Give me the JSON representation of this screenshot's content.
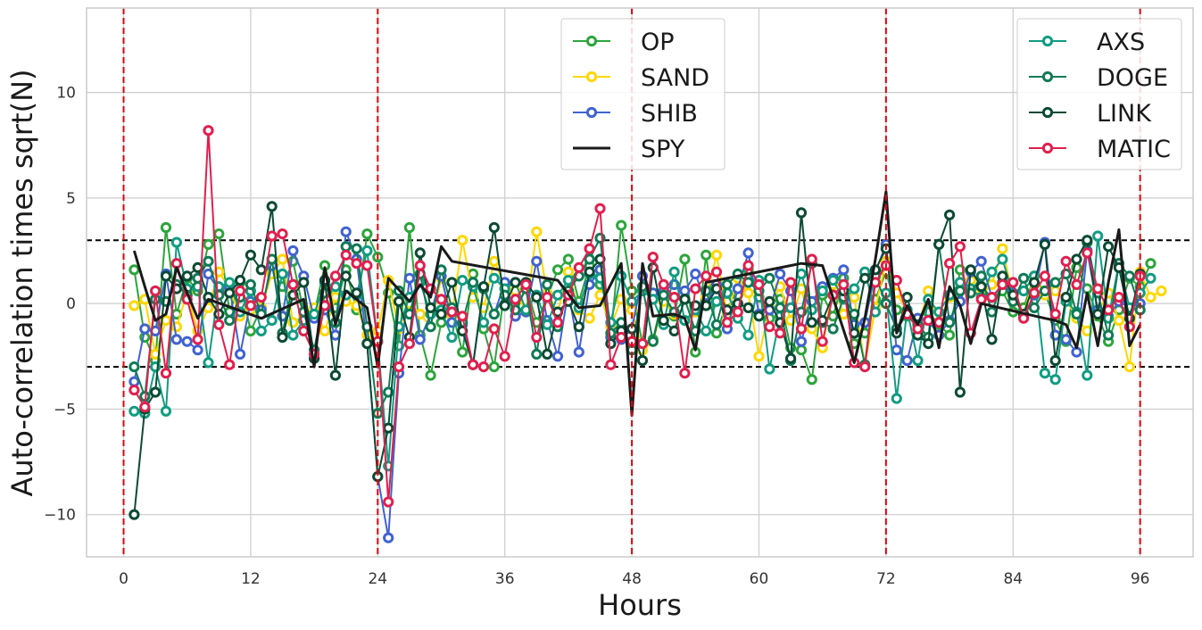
{
  "chart_data": {
    "type": "line",
    "xlabel": "Hours",
    "ylabel": "Auto-correlation times sqrt(N)",
    "xlim": [
      -3.5,
      101.0
    ],
    "ylim": [
      -12,
      14
    ],
    "xticks": [
      0,
      12,
      24,
      36,
      48,
      60,
      72,
      84,
      96
    ],
    "yticks": [
      -10,
      -5,
      0,
      5,
      10
    ],
    "ytick_labels": [
      "−10",
      "−5",
      "0",
      "5",
      "10"
    ],
    "grid": true,
    "threshold_lines": {
      "values": [
        3,
        -3
      ],
      "color": "#000000",
      "style": "dashed"
    },
    "day_lines": {
      "values": [
        0,
        24,
        48,
        72,
        96
      ],
      "color": "#e8000b",
      "style": "dashed"
    },
    "legend_left": {
      "position": "top-center",
      "entries": [
        "OP",
        "SAND",
        "SHIB",
        "SPY"
      ]
    },
    "legend_right": {
      "position": "top-right",
      "entries": [
        "AXS",
        "DOGE",
        "LINK",
        "MATIC"
      ]
    },
    "series": [
      {
        "name": "OP",
        "color": "#2ca53c",
        "marker": true,
        "values": [
          1.6,
          -1.6,
          -2.7,
          3.6,
          -0.5,
          1.2,
          0.6,
          2.8,
          3.3,
          -0.4,
          1.0,
          -1.3,
          -0.2,
          1.6,
          0.8,
          2.0,
          -0.4,
          -0.5,
          1.8,
          -0.2,
          1.6,
          -0.3,
          3.3,
          2.2,
          0.5,
          -2.0,
          3.6,
          -1.5,
          -3.4,
          -0.9,
          -0.3,
          -2.3,
          1.4,
          -1.2,
          -3.0,
          0.7,
          -0.6,
          0.9,
          -0.9,
          0.3,
          1.6,
          2.1,
          0.1,
          1.8,
          0.9,
          -1.6,
          3.7,
          0.6,
          -1.9,
          -1.7,
          0.5,
          -0.6,
          2.1,
          -2.3,
          2.3,
          -1.4,
          0.1,
          0.4,
          1.6,
          0.3,
          -0.7,
          0.2,
          -2.1,
          -2.2,
          -3.6,
          0.4,
          -0.6,
          1.2,
          -1.9,
          -1.4,
          0.2,
          1.5,
          -0.3,
          -0.6,
          -0.7,
          -0.4,
          -1.0,
          -1.5,
          1.6,
          0.5,
          0.8,
          0.3,
          0.6,
          -0.4,
          -0.2,
          1.3,
          0.5,
          -0.8,
          -1.8,
          1.7,
          0.7,
          -0.6,
          -1.8,
          -0.3,
          1.2,
          0.8,
          1.9
        ]
      },
      {
        "name": "SAND",
        "color": "#ffd700",
        "marker": true,
        "values": [
          -0.1,
          0.2,
          -2.4,
          -0.8,
          -1.1,
          0.5,
          -1.3,
          -0.2,
          1.5,
          0.7,
          -0.6,
          -0.3,
          -0.2,
          1.4,
          2.1,
          -0.9,
          -0.6,
          -0.2,
          -1.3,
          0.3,
          0.1,
          -0.1,
          -1.5,
          -1.3,
          1.1,
          -1.2,
          0.0,
          -0.5,
          -1.1,
          1.2,
          -0.6,
          3.0,
          0.3,
          -0.2,
          2.0,
          0.9,
          0.6,
          -0.4,
          3.4,
          0.5,
          -0.4,
          1.5,
          -0.3,
          -0.7,
          0.4,
          -1.1,
          0.2,
          -0.3,
          -2.2,
          -1.8,
          0.1,
          -0.5,
          -0.8,
          -0.4,
          0.3,
          2.3,
          -0.5,
          1.2,
          0.5,
          -2.5,
          -0.2,
          0.8,
          -0.8,
          0.7,
          -1.2,
          -2.1,
          0.9,
          -0.5,
          0.3,
          -2.9,
          -0.2,
          2.0,
          0.5,
          -0.4,
          -1.1,
          0.6,
          -0.9,
          0.3,
          0.7,
          1.1,
          0.4,
          0.9,
          2.6,
          0.3,
          -0.5,
          1.3,
          0.4,
          0.6,
          0.2,
          -0.7,
          -1.3,
          -0.4,
          0.5,
          -0.8,
          -3.0,
          1.5,
          0.3,
          0.6
        ]
      },
      {
        "name": "SHIB",
        "color": "#4162d1",
        "marker": true,
        "values": [
          -3.7,
          -1.2,
          -1.3,
          1.4,
          -1.7,
          -1.8,
          -2.2,
          1.4,
          0.6,
          0.8,
          -2.4,
          0.1,
          -0.3,
          1.8,
          -0.6,
          2.5,
          1.3,
          -0.7,
          -0.3,
          -1.5,
          3.4,
          2.1,
          -1.9,
          -8.2,
          -11.1,
          -3.3,
          1.2,
          -1.7,
          -0.5,
          1.3,
          -0.9,
          -1.0,
          -2.9,
          0.8,
          -0.5,
          1.0,
          -0.6,
          -0.4,
          2.0,
          -0.8,
          -2.5,
          0.6,
          -2.3,
          0.9,
          1.6,
          -1.6,
          -1.7,
          -1.2,
          1.3,
          0.5,
          0.6,
          0.9,
          0.6,
          1.4,
          0.0,
          0.9,
          -1.2,
          0.7,
          2.4,
          -0.5,
          -0.3,
          1.4,
          0.6,
          -1.8,
          0.1,
          0.8,
          1.2,
          1.6,
          -1.0,
          -0.9,
          1.5,
          2.8,
          -2.2,
          -2.7,
          -0.7,
          -0.8,
          -1.5,
          -0.8,
          0.1,
          1.5,
          2.0,
          0.3,
          0.9,
          0.5,
          -0.6,
          0.4,
          2.9,
          -1.5,
          -1.7,
          -2.3,
          2.5,
          -0.3,
          -0.6,
          0.1,
          -0.2,
          0.0
        ]
      },
      {
        "name": "AXS",
        "color": "#119c82",
        "marker": true,
        "values": [
          -5.1,
          -5.2,
          -3.0,
          -5.1,
          2.9,
          0.7,
          0.8,
          -2.8,
          0.8,
          1.0,
          -0.4,
          0.6,
          -1.3,
          -0.8,
          1.4,
          -1.5,
          -0.8,
          -0.5,
          1.0,
          0.8,
          0.4,
          0.4,
          2.5,
          -1.8,
          -7.7,
          -1.1,
          0.3,
          1.0,
          -0.5,
          -0.3,
          -1.6,
          1.1,
          0.8,
          -0.9,
          1.2,
          0.7,
          1.0,
          -0.3,
          0.4,
          -1.0,
          0.4,
          1.1,
          -0.2,
          1.4,
          1.2,
          -0.9,
          1.3,
          0.1,
          0.6,
          0.2,
          -1.0,
          1.5,
          -0.8,
          -0.3,
          -1.3,
          0.1,
          0.5,
          -0.7,
          -1.5,
          1.1,
          -3.1,
          -0.6,
          -0.2,
          1.4,
          -0.3,
          0.6,
          1.1,
          0.2,
          0.7,
          1.5,
          -0.4,
          0.5,
          -4.5,
          -0.3,
          -2.7,
          0.2,
          -0.4,
          0.4,
          1.0,
          0.7,
          0.3,
          1.5,
          2.1,
          0.4,
          0.6,
          1.3,
          -3.3,
          -3.6,
          0.1,
          -0.4,
          -3.4,
          3.2,
          -0.7,
          1.9,
          -0.2,
          0.5,
          1.2
        ]
      },
      {
        "name": "DOGE",
        "color": "#117a55",
        "marker": true,
        "values": [
          -3.0,
          -4.4,
          0.2,
          0.1,
          0.9,
          0.4,
          1.2,
          2.0,
          0.4,
          -0.8,
          0.3,
          0.9,
          -0.5,
          2.1,
          -1.4,
          0.9,
          -0.4,
          -2.2,
          0.5,
          -0.9,
          2.7,
          2.6,
          -1.1,
          -5.2,
          -4.2,
          0.6,
          -0.5,
          1.4,
          -1.1,
          1.6,
          -0.2,
          -0.9,
          1.0,
          0.7,
          -0.5,
          0.4,
          -0.3,
          0.7,
          -2.4,
          0.9,
          -1.1,
          0.6,
          1.3,
          2.1,
          3.1,
          -1.4,
          -0.9,
          -2.2,
          0.8,
          -1.8,
          0.4,
          -0.4,
          0.2,
          -1.3,
          0.6,
          -1.0,
          0.9,
          1.4,
          1.0,
          0.6,
          1.2,
          -0.2,
          -2.7,
          -0.4,
          1.9,
          -0.9,
          -1.2,
          0.3,
          -0.5,
          -2.9,
          1.3,
          0.0,
          -1.2,
          -0.5,
          -1.0,
          -1.6,
          2.8,
          -0.9,
          0.6,
          0.5,
          1.3,
          -0.4,
          1.0,
          0.1,
          1.2,
          -0.2,
          0.6,
          1.0,
          1.4,
          -0.5,
          2.9,
          0.5,
          -1.5,
          1.9,
          1.3,
          -0.3
        ]
      },
      {
        "name": "LINK",
        "color": "#0c4a33",
        "marker": true,
        "values": [
          -10.0,
          -5.0,
          -4.2,
          1.3,
          0.7,
          1.3,
          1.7,
          0.3,
          -0.5,
          0.5,
          1.1,
          2.3,
          1.6,
          4.6,
          -1.6,
          0.4,
          1.0,
          -2.6,
          1.1,
          -3.4,
          1.3,
          0.5,
          -1.9,
          -8.2,
          -5.9,
          0.1,
          -1.6,
          2.4,
          -0.2,
          -0.5,
          1.0,
          -1.3,
          -2.9,
          0.8,
          3.6,
          -0.1,
          1.0,
          1.0,
          0.3,
          -2.4,
          -0.4,
          0.1,
          -1.1,
          1.5,
          2.1,
          -1.9,
          -1.3,
          -1.2,
          -2.7,
          1.7,
          -0.8,
          -1.3,
          0.2,
          -0.1,
          -0.1,
          0.7,
          -0.3,
          0.0,
          -0.2,
          -0.6,
          0.1,
          -0.9,
          -2.6,
          4.3,
          -0.9,
          -0.8,
          0.4,
          0.6,
          -1.4,
          1.2,
          1.6,
          2.6,
          -1.4,
          0.3,
          -1.5,
          -1.9,
          2.8,
          4.2,
          -4.2,
          1.6,
          0.8,
          -1.7,
          1.3,
          0.4,
          -0.5,
          1.0,
          2.8,
          -2.7,
          0.3,
          2.1,
          3.0,
          -0.5,
          2.7,
          1.7,
          -0.7,
          1.4
        ]
      },
      {
        "name": "MATIC",
        "color": "#e0204e",
        "marker": true,
        "values": [
          -4.1,
          -4.9,
          0.6,
          -3.3,
          1.9,
          0.2,
          -1.7,
          8.2,
          -1.0,
          -2.9,
          0.6,
          -0.1,
          0.3,
          3.2,
          3.3,
          0.9,
          -1.3,
          -2.4,
          -0.1,
          1.3,
          2.3,
          1.9,
          1.8,
          -1.8,
          -9.4,
          -3.0,
          -1.9,
          1.8,
          0.7,
          0.2,
          -0.4,
          -0.6,
          -2.9,
          -3.0,
          -1.2,
          -2.5,
          0.2,
          0.9,
          -1.6,
          0.3,
          -0.9,
          0.4,
          1.7,
          2.6,
          4.5,
          -2.9,
          -1.6,
          -1.8,
          -1.9,
          2.2,
          0.9,
          0.3,
          -3.3,
          0.7,
          1.3,
          1.5,
          -0.9,
          -0.4,
          1.8,
          0.9,
          -1.1,
          -1.4,
          1.0,
          -1.2,
          2.1,
          -1.8,
          0.4,
          0.9,
          -2.8,
          -3.0,
          1.0,
          1.8,
          1.1,
          -0.5,
          -1.2,
          -0.8,
          -0.9,
          1.9,
          2.7,
          -1.4,
          0.2,
          0.3,
          0.9,
          1.0,
          -0.7,
          0.5,
          1.3,
          -0.5,
          2.0,
          0.9,
          2.4,
          0.7,
          -0.3,
          0.3,
          -1.1,
          1.3
        ]
      },
      {
        "name": "SPY",
        "color": "#1a1a1a",
        "marker": false,
        "points": [
          [
            1,
            2.5
          ],
          [
            2,
            0.8
          ],
          [
            3,
            -0.8
          ],
          [
            4,
            -0.5
          ],
          [
            5,
            1.7
          ],
          [
            6,
            0.5
          ],
          [
            7,
            -0.7
          ],
          [
            8,
            0.2
          ],
          [
            13,
            -0.7
          ],
          [
            17,
            0.2
          ],
          [
            18,
            -3.0
          ],
          [
            19,
            1.7
          ],
          [
            20,
            -1.0
          ],
          [
            21,
            0.6
          ],
          [
            23,
            -0.2
          ],
          [
            24,
            -3.0
          ],
          [
            25,
            1.2
          ],
          [
            27,
            0.1
          ],
          [
            28,
            0.9
          ],
          [
            29,
            0.3
          ],
          [
            30,
            2.7
          ],
          [
            31,
            2.0
          ],
          [
            41,
            1.1
          ],
          [
            43,
            -0.2
          ],
          [
            45,
            -0.1
          ],
          [
            47,
            1.9
          ],
          [
            48,
            -5.3
          ],
          [
            49,
            1.9
          ],
          [
            50,
            -0.6
          ],
          [
            52,
            -0.5
          ],
          [
            53,
            -0.7
          ],
          [
            54,
            -2.2
          ],
          [
            55,
            1.0
          ],
          [
            64,
            1.9
          ],
          [
            66,
            1.8
          ],
          [
            69,
            -2.8
          ],
          [
            70,
            -0.7
          ],
          [
            71,
            2.1
          ],
          [
            72,
            5.3
          ],
          [
            73,
            -1.4
          ],
          [
            74,
            -0.1
          ],
          [
            75,
            -1.0
          ],
          [
            76,
            0.2
          ],
          [
            77,
            -2.1
          ],
          [
            78,
            0.8
          ],
          [
            79,
            -0.1
          ],
          [
            80,
            -1.9
          ],
          [
            81,
            0.0
          ],
          [
            87,
            -0.7
          ],
          [
            88,
            -0.8
          ],
          [
            89,
            -1.0
          ],
          [
            90,
            -2.1
          ],
          [
            91,
            0.5
          ],
          [
            92,
            -2.0
          ],
          [
            93,
            1.0
          ],
          [
            94,
            3.5
          ],
          [
            95,
            -2.0
          ],
          [
            96,
            -1.0
          ]
        ]
      }
    ]
  }
}
